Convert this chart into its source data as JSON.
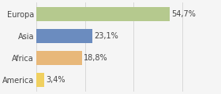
{
  "categories": [
    "Europa",
    "Asia",
    "Africa",
    "America"
  ],
  "values": [
    54.7,
    23.1,
    18.8,
    3.4
  ],
  "labels": [
    "54,7%",
    "23,1%",
    "18,8%",
    "3,4%"
  ],
  "bar_colors": [
    "#b5c98e",
    "#6b8cbf",
    "#e8b87a",
    "#f0d060"
  ],
  "background_color": "#f5f5f5",
  "xlim": [
    0,
    75
  ],
  "label_fontsize": 7.0,
  "category_fontsize": 7.0,
  "bar_height": 0.62,
  "grid_ticks": [
    0,
    20,
    40,
    60
  ],
  "grid_color": "#cccccc"
}
